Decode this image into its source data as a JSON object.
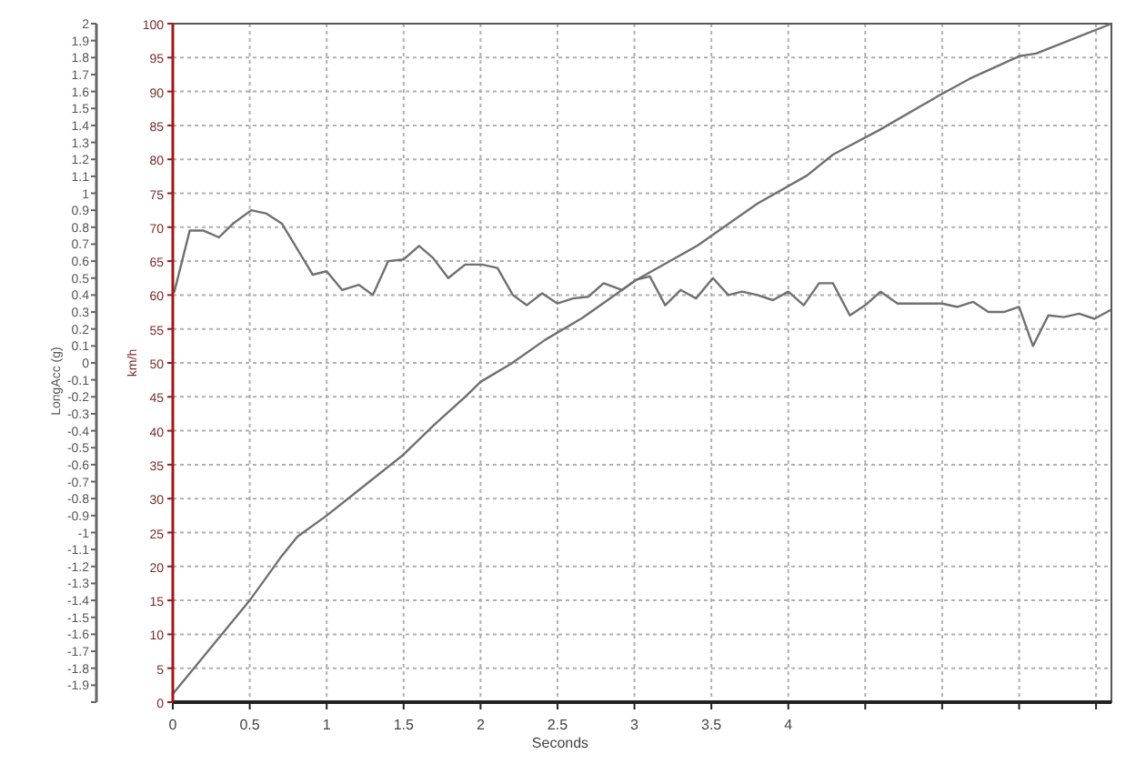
{
  "chart_data": {
    "type": "line",
    "xlabel": "Seconds",
    "ylabel": "LongAcc (g)",
    "y2label": "km/h",
    "grid": true,
    "marker": "none",
    "line_style": "solid",
    "xlim": [
      0,
      6.1
    ],
    "xticks": [
      0,
      0.5,
      1,
      1.5,
      2,
      2.5,
      3,
      3.5,
      4,
      {
        "value": 4.5,
        "label": null
      },
      {
        "value": 5,
        "label": null
      },
      {
        "value": 5.5,
        "label": null
      },
      {
        "value": 6,
        "label": null
      }
    ],
    "ylim": [
      -2,
      2
    ],
    "yticks": [
      {
        "value": -2,
        "label": null
      },
      -1.9,
      -1.8,
      -1.7,
      -1.6,
      -1.5,
      -1.4,
      -1.3,
      -1.2,
      -1.1,
      -1,
      -0.9,
      -0.8,
      -0.7,
      -0.6,
      -0.5,
      -0.4,
      -0.3,
      -0.2,
      -0.1,
      0,
      0.1,
      0.2,
      0.3,
      0.4,
      0.5,
      0.6,
      0.7,
      0.8,
      0.9,
      1,
      1.1,
      1.2,
      1.3,
      1.4,
      1.5,
      1.6,
      1.7,
      1.8,
      1.9,
      2
    ],
    "y2lim": [
      0,
      100
    ],
    "y2ticks": [
      0,
      5,
      10,
      15,
      20,
      25,
      30,
      35,
      40,
      45,
      50,
      55,
      60,
      65,
      70,
      75,
      80,
      85,
      90,
      95,
      100
    ],
    "series": [
      {
        "axis": "y",
        "color": "#707070",
        "x": [
          0.01,
          0.11,
          0.2,
          0.3,
          0.39,
          0.51,
          0.61,
          0.71,
          0.81,
          0.91,
          1.0,
          1.1,
          1.21,
          1.3,
          1.4,
          1.5,
          1.6,
          1.69,
          1.79,
          1.9,
          2.01,
          2.11,
          2.21,
          2.3,
          2.4,
          2.5,
          2.6,
          2.7,
          2.8,
          2.92,
          3.01,
          3.1,
          3.2,
          3.3,
          3.4,
          3.51,
          3.61,
          3.7,
          3.8,
          3.9,
          4.0,
          4.1,
          4.2,
          4.29,
          4.4,
          4.5,
          4.6,
          4.71,
          5.0,
          5.1,
          5.2,
          5.3,
          5.4,
          5.5,
          5.59,
          5.69,
          5.79,
          5.89,
          5.99,
          6.09
        ],
        "values": [
          0.42,
          0.78,
          0.78,
          0.74,
          0.82,
          0.9,
          0.88,
          0.82,
          0.67,
          0.52,
          0.54,
          0.43,
          0.46,
          0.4,
          0.6,
          0.61,
          0.69,
          0.62,
          0.5,
          0.58,
          0.58,
          0.56,
          0.4,
          0.34,
          0.41,
          0.35,
          0.38,
          0.39,
          0.47,
          0.43,
          0.49,
          0.51,
          0.34,
          0.43,
          0.38,
          0.5,
          0.4,
          0.42,
          0.4,
          0.37,
          0.42,
          0.34,
          0.47,
          0.47,
          0.28,
          0.34,
          0.42,
          0.35,
          0.35,
          0.33,
          0.36,
          0.3,
          0.3,
          0.33,
          0.1,
          0.28,
          0.27,
          0.29,
          0.26,
          0.31
        ]
      },
      {
        "axis": "y2",
        "color": "#707070",
        "x": [
          0,
          0.5,
          0.7,
          0.81,
          1.0,
          1.2,
          1.5,
          1.7,
          1.9,
          2.0,
          2.2,
          2.42,
          2.66,
          3.01,
          3.41,
          3.8,
          4.12,
          4.29,
          4.59,
          4.98,
          5.18,
          5.5,
          5.61,
          5.89,
          6.09
        ],
        "values": [
          1.2,
          15,
          21.3,
          24.4,
          27.5,
          31.1,
          36.5,
          40.9,
          45,
          47.2,
          49.9,
          53.4,
          56.6,
          62.2,
          67.3,
          73.5,
          77.6,
          80.7,
          84.3,
          89.4,
          91.9,
          95.2,
          95.6,
          98.1,
          99.9
        ]
      }
    ]
  }
}
